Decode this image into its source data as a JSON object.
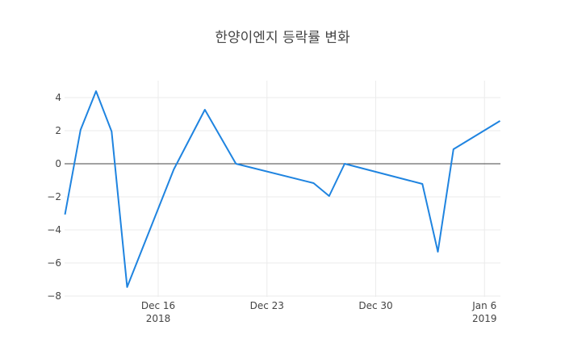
{
  "chart_data": {
    "type": "line",
    "title": "한양이엔지 등락률 변화",
    "xlabel": "",
    "ylabel": "",
    "x": [
      "2018-12-10",
      "2018-12-11",
      "2018-12-12",
      "2018-12-13",
      "2018-12-14",
      "2018-12-17",
      "2018-12-19",
      "2018-12-21",
      "2018-12-26",
      "2018-12-27",
      "2018-12-28",
      "2019-01-02",
      "2019-01-03",
      "2019-01-04",
      "2019-01-07"
    ],
    "series": [
      {
        "name": "등락률",
        "color": "#1f84e0",
        "values": [
          -3.07,
          2.05,
          4.39,
          1.95,
          -7.46,
          -0.34,
          3.27,
          0.0,
          -1.17,
          -1.95,
          0.0,
          -1.22,
          -5.32,
          0.88,
          2.59
        ]
      }
    ],
    "ylim": [
      -8,
      4.8
    ],
    "yticks": [
      4,
      2,
      0,
      -2,
      -4,
      -6,
      -8
    ],
    "ytick_labels": [
      "4",
      "2",
      "0",
      "−2",
      "−4",
      "−6",
      "−8"
    ],
    "xticks": [
      {
        "date": "2018-12-16",
        "label": "Dec 16",
        "sublabel": "2018"
      },
      {
        "date": "2018-12-23",
        "label": "Dec 23",
        "sublabel": ""
      },
      {
        "date": "2018-12-30",
        "label": "Dec 30",
        "sublabel": ""
      },
      {
        "date": "2019-01-06",
        "label": "Jan 6",
        "sublabel": "2019"
      }
    ],
    "grid": true,
    "legend": "none"
  },
  "title": "한양이엔지 등락률 변화"
}
